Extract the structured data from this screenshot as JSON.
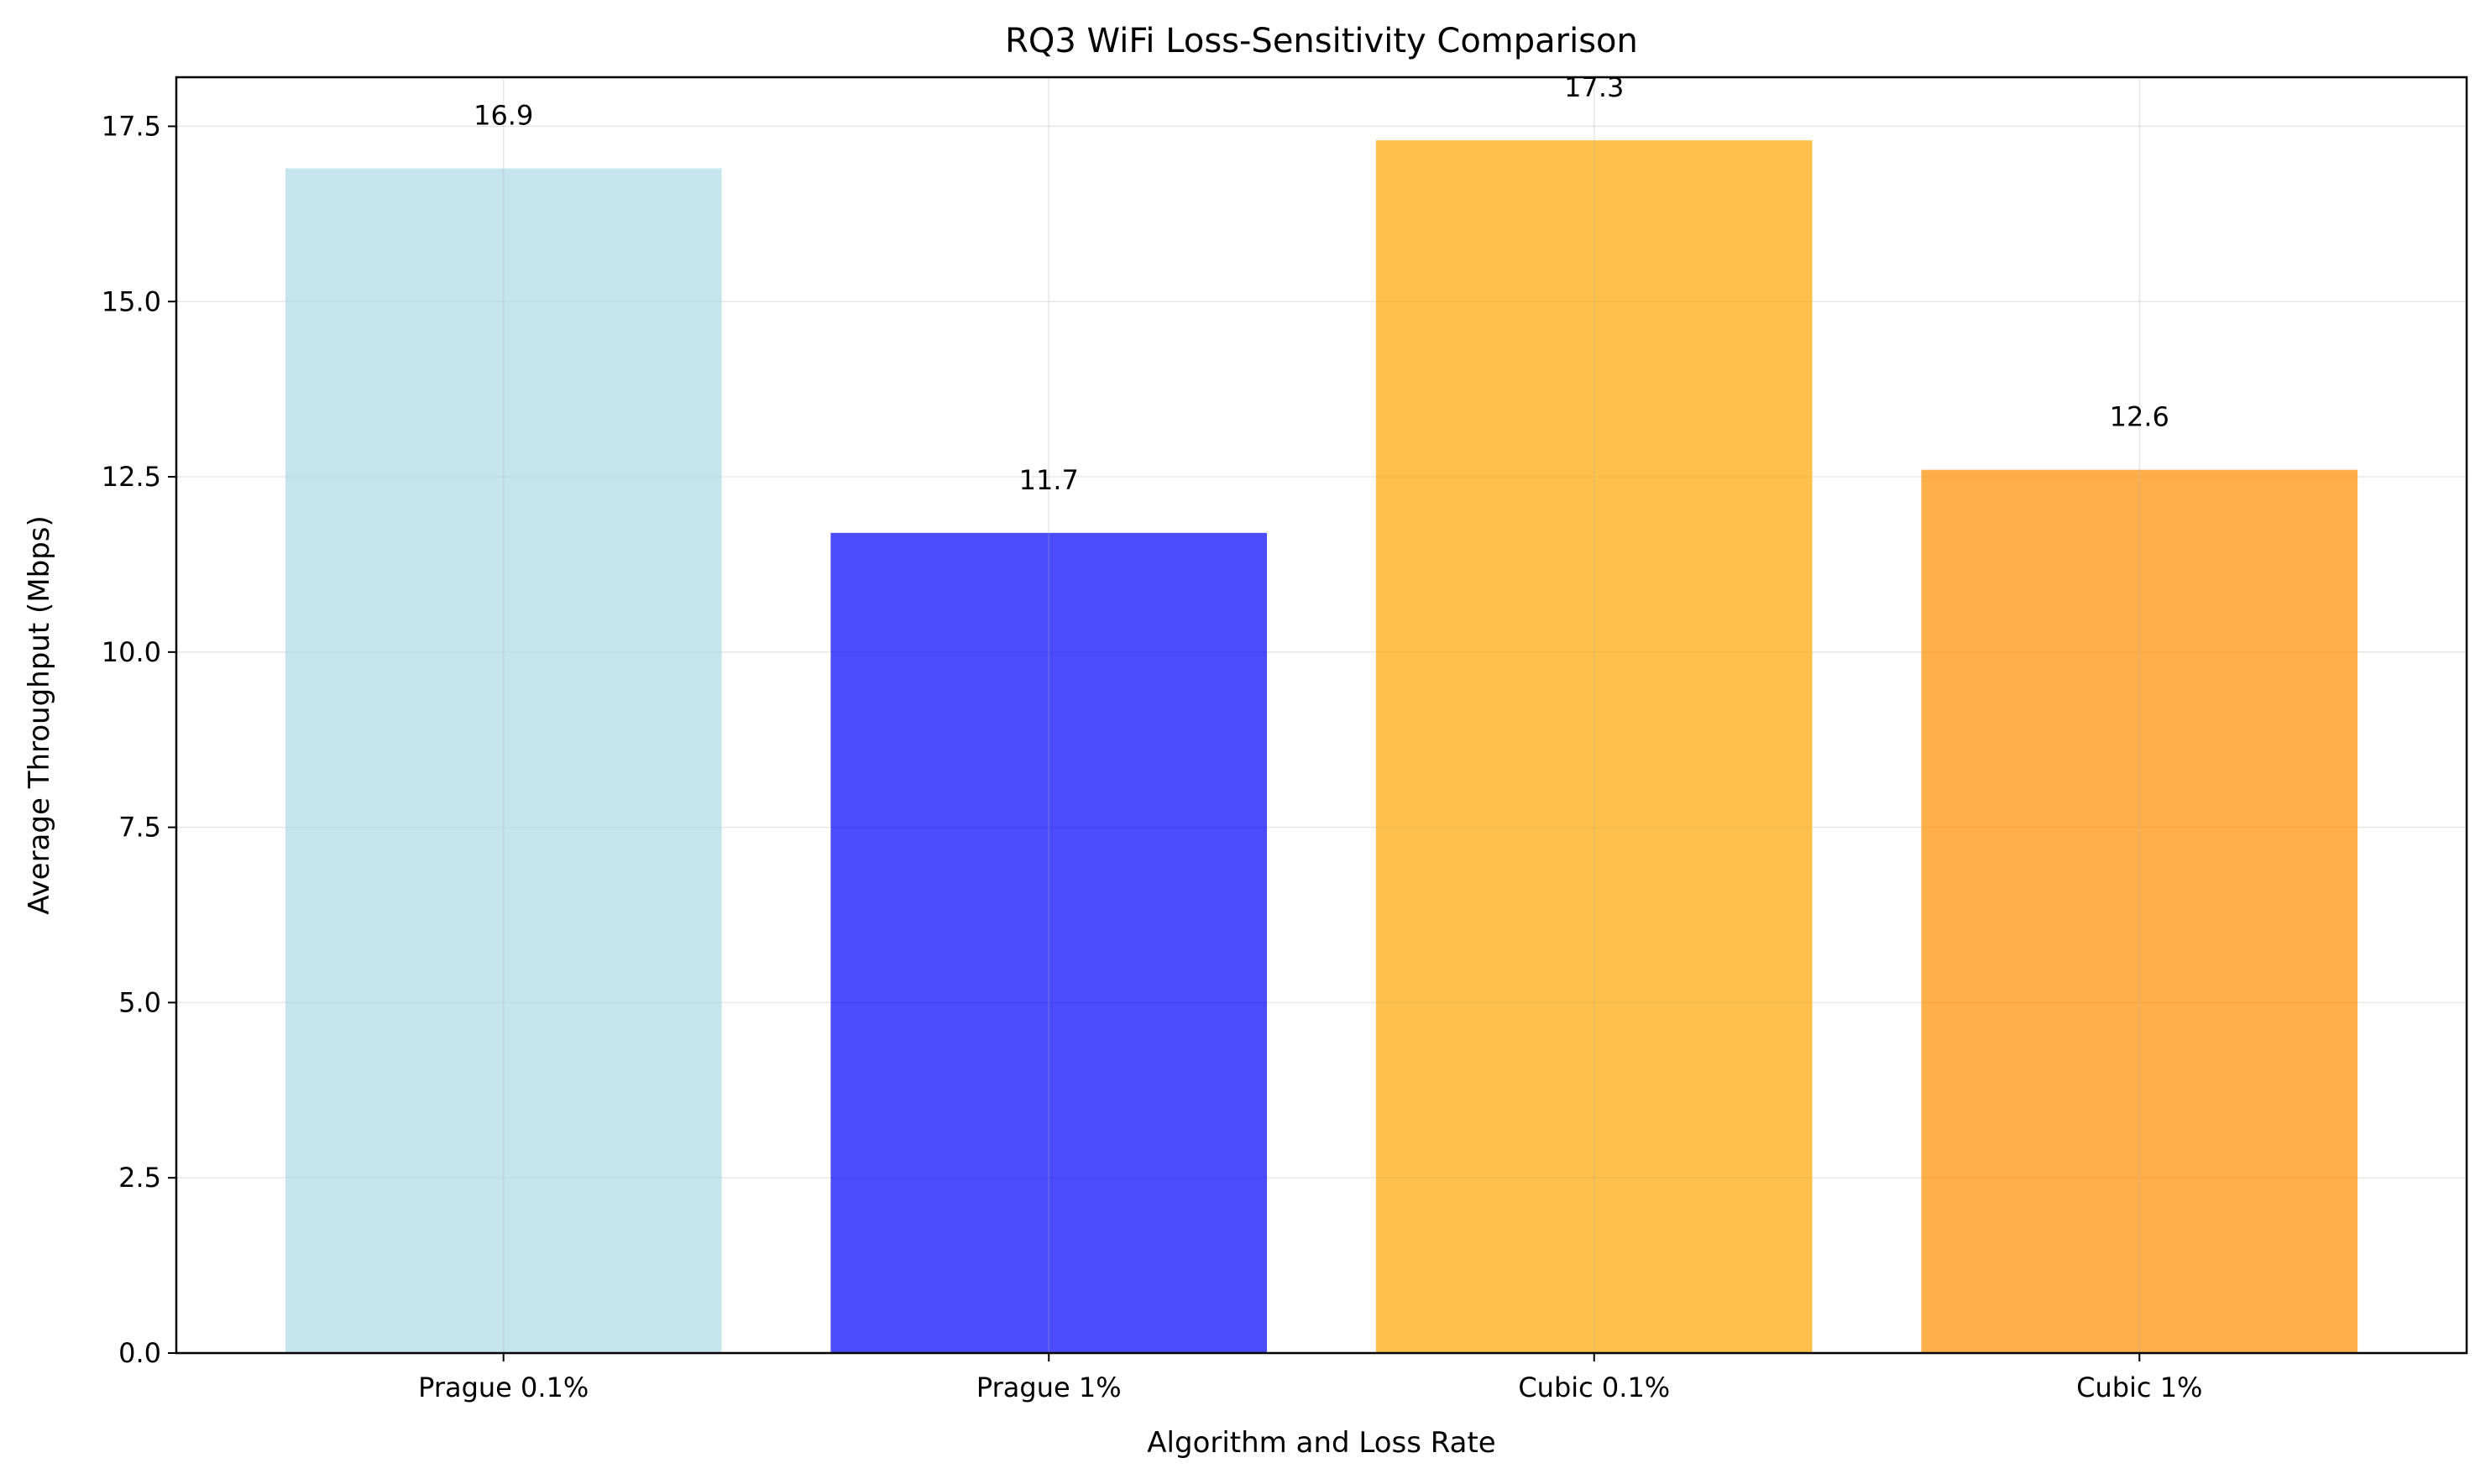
{
  "chart_data": {
    "type": "bar",
    "title": "RQ3 WiFi Loss-Sensitivity Comparison",
    "xlabel": "Algorithm and Loss Rate",
    "ylabel": "Average Throughput (Mbps)",
    "categories": [
      "Prague 0.1%",
      "Prague 1%",
      "Cubic 0.1%",
      "Cubic 1%"
    ],
    "values": [
      16.9,
      11.7,
      17.3,
      12.6
    ],
    "value_labels": [
      "16.9",
      "11.7",
      "17.3",
      "12.6"
    ],
    "colors": [
      "#add8e6",
      "#0000ff",
      "#ffa500",
      "#ff8c00"
    ],
    "bar_opacity": 0.7,
    "ylim": [
      0,
      18.2
    ],
    "yticks": [
      0,
      2.5,
      5,
      7.5,
      10,
      12.5,
      15,
      17.5
    ],
    "ytick_labels": [
      "0.0",
      "2.5",
      "5.0",
      "7.5",
      "10.0",
      "12.5",
      "15.0",
      "17.5"
    ],
    "grid": true,
    "legend": "none"
  }
}
